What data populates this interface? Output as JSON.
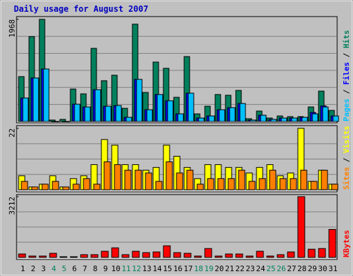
{
  "chart_data": [
    {
      "type": "bar",
      "title": "Daily usage for August 2007",
      "ylim": [
        0,
        1968
      ],
      "yticks": [
        1968
      ],
      "series": [
        {
          "name": "Hits",
          "color": "#00805c",
          "values": [
            864,
            1635,
            1968,
            27,
            40,
            625,
            532,
            1409,
            785,
            891,
            253,
            1875,
            559,
            1144,
            1024,
            465,
            1250,
            146,
            293,
            519,
            505,
            598,
            53,
            200,
            66,
            106,
            93,
            93,
            279,
            585,
            213
          ]
        },
        {
          "name": "Files",
          "color": "#0000ff",
          "values": [
            452,
            838,
            1011,
            0,
            0,
            332,
            279,
            612,
            293,
            306,
            80,
            811,
            226,
            519,
            399,
            146,
            545,
            66,
            106,
            226,
            266,
            346,
            27,
            120,
            40,
            66,
            66,
            80,
            173,
            300,
            106
          ]
        },
        {
          "name": "Pages",
          "color": "#00c0ff",
          "values": [
            452,
            838,
            1011,
            0,
            0,
            332,
            279,
            612,
            293,
            306,
            80,
            811,
            226,
            519,
            399,
            146,
            545,
            66,
            106,
            226,
            266,
            346,
            27,
            120,
            40,
            66,
            66,
            80,
            146,
            279,
            106
          ]
        }
      ]
    },
    {
      "type": "bar",
      "ylim": [
        0,
        22
      ],
      "yticks": [
        22
      ],
      "series": [
        {
          "name": "Visits",
          "color": "#ffff00",
          "values": [
            5,
            1,
            2,
            5,
            1,
            4,
            5,
            9,
            18,
            16,
            9,
            9,
            7,
            8,
            16,
            12,
            8,
            4,
            9,
            9,
            8,
            8,
            6,
            8,
            9,
            5,
            6,
            22,
            3,
            7,
            2
          ]
        },
        {
          "name": "Sites",
          "color": "#ff8000",
          "values": [
            3,
            1,
            2,
            3,
            1,
            2,
            4,
            2,
            10,
            9,
            7,
            7,
            6,
            3,
            10,
            6,
            7,
            2,
            4,
            4,
            4,
            7,
            3,
            4,
            7,
            4,
            4,
            7,
            3,
            7,
            2
          ]
        }
      ]
    },
    {
      "type": "bar",
      "ylim": [
        0,
        3212
      ],
      "yticks": [
        3212
      ],
      "categories": [
        "1",
        "2",
        "3",
        "4",
        "5",
        "6",
        "7",
        "8",
        "9",
        "10",
        "11",
        "12",
        "13",
        "14",
        "15",
        "16",
        "17",
        "18",
        "19",
        "20",
        "21",
        "22",
        "23",
        "24",
        "25",
        "26",
        "27",
        "28",
        "29",
        "30",
        "31"
      ],
      "category_colors": [
        "#000000",
        "#000000",
        "#000000",
        "#00805c",
        "#00805c",
        "#000000",
        "#000000",
        "#000000",
        "#000000",
        "#000000",
        "#00805c",
        "#00805c",
        "#000000",
        "#000000",
        "#000000",
        "#000000",
        "#000000",
        "#00805c",
        "#00805c",
        "#000000",
        "#000000",
        "#000000",
        "#000000",
        "#000000",
        "#00805c",
        "#00805c",
        "#000000",
        "#000000",
        "#000000",
        "#000000",
        "#000000"
      ],
      "series": [
        {
          "name": "KBytes",
          "color": "#ff0000",
          "values": [
            180,
            72,
            72,
            216,
            36,
            36,
            144,
            144,
            324,
            505,
            144,
            324,
            252,
            289,
            614,
            252,
            216,
            72,
            469,
            72,
            180,
            180,
            72,
            325,
            72,
            144,
            289,
            3212,
            433,
            469,
            1480
          ]
        }
      ]
    }
  ],
  "legend_separator": " / "
}
